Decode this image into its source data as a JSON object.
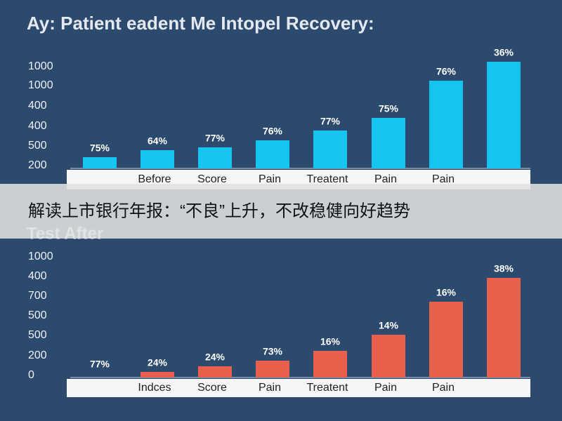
{
  "panels": [
    {
      "title": "Ay: Patient eadent Me Intopel Recovery:",
      "y_labels": [
        "1000",
        "1000",
        "400",
        "400",
        "500",
        "200"
      ],
      "bars": [
        {
          "label": "75%",
          "category": null
        },
        {
          "label": "64%",
          "category": "Before"
        },
        {
          "label": "77%",
          "category": "Score"
        },
        {
          "label": "76%",
          "category": "Pain"
        },
        {
          "label": "77%",
          "category": "Treatent"
        },
        {
          "label": "75%",
          "category": "Pain"
        },
        {
          "label": "76%",
          "category": "Pain"
        },
        {
          "label": "36%",
          "category": null
        }
      ]
    },
    {
      "title": "Test After",
      "y_labels": [
        "1000",
        "400",
        "700",
        "500",
        "500",
        "200",
        "0"
      ],
      "bars": [
        {
          "label": "77%",
          "category": null
        },
        {
          "label": "24%",
          "category": "Indces"
        },
        {
          "label": "24%",
          "category": "Score"
        },
        {
          "label": "73%",
          "category": "Pain"
        },
        {
          "label": "16%",
          "category": "Treatent"
        },
        {
          "label": "14%",
          "category": "Pain"
        },
        {
          "label": "16%",
          "category": "Pain"
        },
        {
          "label": "38%",
          "category": null
        }
      ]
    }
  ],
  "banner": {
    "text": "解读上市银行年报：“不良”上升，不改稳健向好趋势"
  }
}
